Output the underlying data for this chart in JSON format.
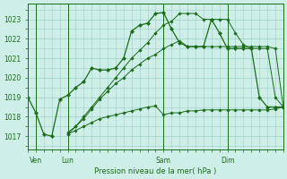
{
  "title": "Pression niveau de la mer( hPa )",
  "bg_color": "#ceeee8",
  "grid_color": "#9ecfc8",
  "line_color": "#1a6b1a",
  "marker_color": "#1a6b1a",
  "yticks": [
    1017,
    1018,
    1019,
    1020,
    1021,
    1022,
    1023
  ],
  "ylim": [
    1016.3,
    1023.8
  ],
  "xlim": [
    0,
    96
  ],
  "xtick_positions": [
    3,
    15,
    51,
    75
  ],
  "xtick_labels": [
    "Ven",
    "Lun",
    "Sam",
    "Dim"
  ],
  "vlines": [
    3,
    15,
    51,
    75
  ],
  "series": [
    {
      "x": [
        0,
        3,
        6,
        9,
        12,
        15,
        18,
        21,
        24,
        27,
        30,
        33,
        36,
        39,
        42,
        45,
        48,
        51,
        54,
        57,
        60,
        63,
        66,
        69,
        72,
        75,
        78,
        81,
        84,
        87,
        90,
        93,
        96
      ],
      "y": [
        1019.0,
        1018.2,
        1017.1,
        1017.0,
        1018.9,
        1019.1,
        1019.5,
        1019.8,
        1020.5,
        1020.4,
        1020.4,
        1020.5,
        1021.0,
        1022.4,
        1022.7,
        1022.8,
        1023.3,
        1023.35,
        1022.5,
        1021.8,
        1021.6,
        1021.6,
        1021.6,
        1023.0,
        1022.3,
        1021.5,
        1021.5,
        1021.5,
        1021.5,
        1019.0,
        1018.5,
        1018.5,
        1018.5
      ],
      "marker": "D",
      "markersize": 2.2,
      "linewidth": 0.9
    },
    {
      "x": [
        15,
        18,
        21,
        24,
        27,
        30,
        33,
        36,
        39,
        42,
        45,
        48,
        51,
        54,
        57,
        60,
        63,
        66,
        69,
        72,
        75,
        78,
        81,
        84,
        87,
        90,
        93,
        96
      ],
      "y": [
        1017.1,
        1017.3,
        1017.5,
        1017.7,
        1017.9,
        1018.0,
        1018.1,
        1018.2,
        1018.3,
        1018.4,
        1018.5,
        1018.55,
        1018.1,
        1018.2,
        1018.2,
        1018.3,
        1018.3,
        1018.35,
        1018.35,
        1018.35,
        1018.35,
        1018.35,
        1018.35,
        1018.35,
        1018.35,
        1018.35,
        1018.4,
        1018.5
      ],
      "marker": "D",
      "markersize": 1.8,
      "linewidth": 0.7
    },
    {
      "x": [
        15,
        18,
        21,
        24,
        27,
        30,
        33,
        36,
        39,
        42,
        45,
        48,
        51,
        54,
        57,
        60,
        63,
        66,
        69,
        72,
        75,
        78,
        81,
        84,
        87,
        90,
        93,
        96
      ],
      "y": [
        1017.2,
        1017.5,
        1017.9,
        1018.4,
        1018.9,
        1019.3,
        1019.7,
        1020.0,
        1020.4,
        1020.7,
        1021.0,
        1021.2,
        1021.5,
        1021.7,
        1021.9,
        1021.6,
        1021.6,
        1021.6,
        1021.6,
        1021.6,
        1021.6,
        1021.6,
        1021.6,
        1021.6,
        1021.6,
        1021.6,
        1021.5,
        1018.5
      ],
      "marker": "D",
      "markersize": 1.8,
      "linewidth": 0.7
    },
    {
      "x": [
        15,
        18,
        21,
        24,
        27,
        30,
        33,
        36,
        39,
        42,
        45,
        48,
        51,
        54,
        57,
        60,
        63,
        66,
        69,
        72,
        75,
        78,
        81,
        84,
        87,
        90,
        93,
        96
      ],
      "y": [
        1017.1,
        1017.5,
        1018.0,
        1018.5,
        1019.0,
        1019.5,
        1020.0,
        1020.5,
        1021.0,
        1021.4,
        1021.8,
        1022.3,
        1022.7,
        1022.9,
        1023.3,
        1023.3,
        1023.3,
        1023.0,
        1023.0,
        1023.0,
        1023.0,
        1022.3,
        1021.7,
        1021.5,
        1021.5,
        1021.5,
        1019.0,
        1018.5
      ],
      "marker": "D",
      "markersize": 1.8,
      "linewidth": 0.7
    }
  ]
}
